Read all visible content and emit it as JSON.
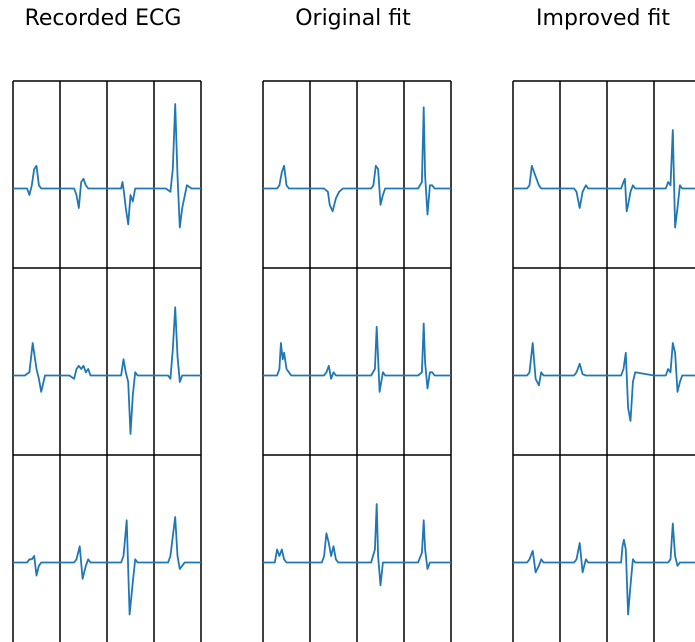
{
  "chart_data": {
    "type": "line",
    "line_color": "#1f77b4",
    "grid": "4 columns x 3 rows of traces per panel",
    "panels": [
      {
        "title": "Recorded ECG",
        "traces": [
          {
            "x": [
              0,
              0.3,
              0.35,
              0.4,
              0.45,
              0.5,
              0.55,
              0.6,
              1
            ],
            "y": [
              0,
              0,
              -0.1,
              0.05,
              0.3,
              0.35,
              0.05,
              0,
              0
            ]
          },
          {
            "x": [
              0,
              0.3,
              0.35,
              0.4,
              0.45,
              0.5,
              0.55,
              0.6,
              0.65,
              1
            ],
            "y": [
              0,
              0,
              -0.1,
              -0.3,
              0.1,
              0.15,
              0.05,
              0,
              0,
              0
            ]
          },
          {
            "x": [
              0,
              0.3,
              0.33,
              0.36,
              0.4,
              0.45,
              0.5,
              0.55,
              0.6,
              1
            ],
            "y": [
              0,
              0,
              0.1,
              -0.05,
              -0.3,
              -0.55,
              -0.1,
              -0.2,
              0,
              0
            ]
          },
          {
            "x": [
              0,
              0.25,
              0.35,
              0.4,
              0.45,
              0.5,
              0.55,
              0.6,
              0.7,
              0.8,
              1
            ],
            "y": [
              0,
              0,
              -0.05,
              0.3,
              1.3,
              0.2,
              -0.6,
              -0.3,
              0.05,
              0,
              0
            ]
          },
          {
            "x": [
              0,
              0.25,
              0.35,
              0.42,
              0.5,
              0.55,
              0.6,
              0.68,
              1
            ],
            "y": [
              0,
              0,
              0.05,
              0.5,
              0.1,
              -0.05,
              -0.25,
              0,
              0
            ]
          },
          {
            "x": [
              0,
              0.2,
              0.3,
              0.35,
              0.4,
              0.45,
              0.5,
              0.55,
              0.6,
              0.65,
              0.7,
              1
            ],
            "y": [
              0,
              0,
              -0.05,
              0.1,
              0.15,
              0.1,
              0.15,
              0.05,
              0.1,
              0,
              0,
              0
            ]
          },
          {
            "x": [
              0,
              0.3,
              0.35,
              0.4,
              0.45,
              0.5,
              0.55,
              0.6,
              0.65,
              1
            ],
            "y": [
              0,
              0,
              0.25,
              0.05,
              -0.1,
              -0.9,
              -0.3,
              0.05,
              0,
              0
            ]
          },
          {
            "x": [
              0,
              0.3,
              0.35,
              0.4,
              0.45,
              0.5,
              0.55,
              0.6,
              1
            ],
            "y": [
              0,
              0,
              -0.05,
              0.4,
              1.05,
              0.3,
              -0.1,
              0,
              0
            ]
          },
          {
            "x": [
              0,
              0.3,
              0.35,
              0.4,
              0.45,
              0.5,
              0.55,
              0.6,
              1
            ],
            "y": [
              0,
              0,
              0.05,
              0.05,
              0.1,
              -0.2,
              -0.05,
              0,
              0
            ]
          },
          {
            "x": [
              0,
              0.3,
              0.35,
              0.42,
              0.48,
              0.55,
              0.6,
              0.65,
              1
            ],
            "y": [
              0,
              0,
              0.05,
              0.25,
              -0.25,
              -0.05,
              0.05,
              0,
              0
            ]
          },
          {
            "x": [
              0,
              0.3,
              0.35,
              0.42,
              0.48,
              0.55,
              0.6,
              0.65,
              1
            ],
            "y": [
              0,
              0,
              0.1,
              0.65,
              -0.8,
              -0.3,
              0.05,
              0,
              0
            ]
          },
          {
            "x": [
              0,
              0.3,
              0.35,
              0.45,
              0.5,
              0.55,
              0.6,
              0.65,
              1
            ],
            "y": [
              0,
              0,
              0.1,
              0.7,
              0.1,
              -0.1,
              -0.05,
              0,
              0
            ]
          }
        ]
      },
      {
        "title": "Original fit",
        "traces": [
          {
            "x": [
              0,
              0.3,
              0.35,
              0.4,
              0.45,
              0.5,
              0.55,
              1
            ],
            "y": [
              0,
              0,
              0.05,
              0.25,
              0.35,
              0.05,
              0,
              0
            ]
          },
          {
            "x": [
              0,
              0.3,
              0.38,
              0.42,
              0.48,
              0.55,
              0.62,
              0.7,
              1
            ],
            "y": [
              0,
              0,
              -0.05,
              -0.25,
              -0.35,
              -0.15,
              -0.05,
              0,
              0
            ]
          },
          {
            "x": [
              0,
              0.3,
              0.35,
              0.4,
              0.45,
              0.5,
              0.55,
              0.6,
              1
            ],
            "y": [
              0,
              0,
              0.05,
              0.35,
              0.3,
              -0.25,
              -0.1,
              0,
              0
            ]
          },
          {
            "x": [
              0,
              0.3,
              0.38,
              0.42,
              0.45,
              0.5,
              0.55,
              0.6,
              0.65,
              1
            ],
            "y": [
              0,
              0,
              0.1,
              1.25,
              0.2,
              -0.4,
              0.05,
              0.05,
              0,
              0
            ]
          },
          {
            "x": [
              0,
              0.3,
              0.35,
              0.38,
              0.42,
              0.45,
              0.5,
              0.55,
              0.6,
              1
            ],
            "y": [
              0,
              0,
              0.1,
              0.5,
              0.25,
              0.35,
              0.1,
              0.05,
              0,
              0
            ]
          },
          {
            "x": [
              0,
              0.3,
              0.35,
              0.4,
              0.45,
              0.5,
              0.55,
              1
            ],
            "y": [
              0,
              0,
              0.05,
              0.15,
              -0.05,
              0.05,
              0,
              0
            ]
          },
          {
            "x": [
              0,
              0.3,
              0.38,
              0.42,
              0.48,
              0.55,
              0.6,
              0.65,
              1
            ],
            "y": [
              0,
              0,
              0.1,
              0.75,
              -0.25,
              0.05,
              0,
              0,
              0
            ]
          },
          {
            "x": [
              0,
              0.3,
              0.38,
              0.42,
              0.45,
              0.5,
              0.55,
              0.6,
              0.65,
              1
            ],
            "y": [
              0,
              0,
              0.05,
              0.8,
              0.2,
              -0.2,
              0.05,
              0.05,
              0,
              0
            ]
          },
          {
            "x": [
              0,
              0.25,
              0.3,
              0.35,
              0.4,
              0.45,
              0.5,
              0.55,
              1
            ],
            "y": [
              0,
              0,
              0.2,
              0.1,
              0.2,
              0.05,
              0,
              0,
              0
            ]
          },
          {
            "x": [
              0,
              0.25,
              0.3,
              0.35,
              0.4,
              0.45,
              0.5,
              0.55,
              0.6,
              1
            ],
            "y": [
              0,
              0,
              0.1,
              0.45,
              0.3,
              0.1,
              0.25,
              0.05,
              0,
              0
            ]
          },
          {
            "x": [
              0,
              0.3,
              0.38,
              0.42,
              0.45,
              0.5,
              0.55,
              1
            ],
            "y": [
              0,
              0,
              0.2,
              0.9,
              0.1,
              -0.35,
              0,
              0
            ]
          },
          {
            "x": [
              0,
              0.3,
              0.38,
              0.42,
              0.45,
              0.5,
              0.55,
              0.6,
              1
            ],
            "y": [
              0,
              0,
              0.15,
              0.65,
              0.2,
              -0.1,
              0,
              0,
              0
            ]
          }
        ]
      },
      {
        "title": "Improved fit",
        "traces": [
          {
            "x": [
              0,
              0.3,
              0.35,
              0.4,
              0.45,
              0.5,
              0.55,
              0.6,
              1
            ],
            "y": [
              0,
              0,
              0.05,
              0.35,
              0.25,
              0.15,
              0.05,
              0,
              0
            ]
          },
          {
            "x": [
              0,
              0.3,
              0.35,
              0.42,
              0.48,
              0.55,
              0.6,
              0.65,
              1
            ],
            "y": [
              0,
              0,
              -0.05,
              -0.3,
              -0.05,
              0.05,
              0,
              0,
              0
            ]
          },
          {
            "x": [
              0,
              0.3,
              0.35,
              0.38,
              0.42,
              0.45,
              0.5,
              0.55,
              0.6,
              1
            ],
            "y": [
              0,
              0,
              0.1,
              0.15,
              -0.35,
              -0.25,
              -0.05,
              0.05,
              0,
              0
            ]
          },
          {
            "x": [
              0,
              0.25,
              0.3,
              0.35,
              0.4,
              0.45,
              0.5,
              0.55,
              0.6,
              1
            ],
            "y": [
              0,
              0,
              0.1,
              0.05,
              0.9,
              -0.6,
              -0.3,
              0.05,
              0,
              0
            ]
          },
          {
            "x": [
              0,
              0.3,
              0.35,
              0.42,
              0.48,
              0.55,
              0.6,
              0.65,
              1
            ],
            "y": [
              0,
              0,
              0.05,
              0.5,
              -0.05,
              -0.15,
              0.05,
              0,
              0
            ]
          },
          {
            "x": [
              0,
              0.3,
              0.35,
              0.42,
              0.48,
              0.55,
              0.6,
              1
            ],
            "y": [
              0,
              0,
              0.05,
              0.18,
              0.02,
              0,
              0,
              0
            ]
          },
          {
            "x": [
              0,
              0.3,
              0.35,
              0.4,
              0.45,
              0.5,
              0.55,
              0.6,
              1
            ],
            "y": [
              0,
              0,
              0.1,
              0.35,
              -0.5,
              -0.7,
              -0.1,
              0.05,
              0
            ]
          },
          {
            "x": [
              0,
              0.25,
              0.3,
              0.35,
              0.4,
              0.45,
              0.5,
              0.55,
              0.6,
              1
            ],
            "y": [
              0,
              0,
              0.1,
              0.05,
              0.5,
              0.35,
              -0.25,
              -0.1,
              0,
              0
            ]
          },
          {
            "x": [
              0,
              0.3,
              0.35,
              0.42,
              0.48,
              0.55,
              0.6,
              0.65,
              1
            ],
            "y": [
              0,
              0,
              0.05,
              0.18,
              -0.15,
              -0.05,
              0.05,
              0,
              0
            ]
          },
          {
            "x": [
              0,
              0.3,
              0.35,
              0.42,
              0.48,
              0.55,
              0.6,
              0.65,
              1
            ],
            "y": [
              0,
              0,
              0.05,
              0.3,
              -0.15,
              0.05,
              0,
              0,
              0
            ]
          },
          {
            "x": [
              0,
              0.3,
              0.33,
              0.36,
              0.4,
              0.45,
              0.5,
              0.55,
              0.6,
              1
            ],
            "y": [
              0,
              0,
              0.25,
              0.35,
              0.2,
              -0.8,
              -0.35,
              0.05,
              0,
              0
            ]
          },
          {
            "x": [
              0,
              0.3,
              0.35,
              0.4,
              0.45,
              0.5,
              0.55,
              0.6,
              1
            ],
            "y": [
              0,
              0,
              0.05,
              0.6,
              0.1,
              -0.05,
              0,
              0,
              0
            ]
          }
        ]
      }
    ]
  }
}
